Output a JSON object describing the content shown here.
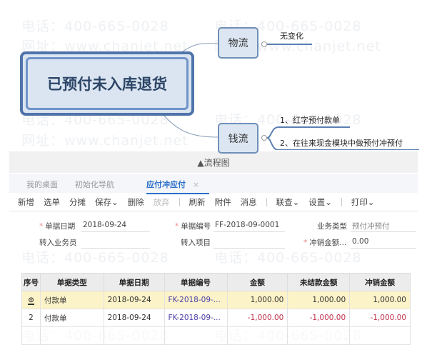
{
  "watermark": {
    "phone": "电话：400-665-0028",
    "site": "网址：www.chanjet.net"
  },
  "mindmap": {
    "central": "已预付未入库退货",
    "branches": [
      {
        "label": "物流",
        "leaves": [
          "无变化"
        ]
      },
      {
        "label": "钱流",
        "leaves": [
          "1、红字预付款单",
          "2、在往来现金模块中做预付冲预付"
        ]
      }
    ]
  },
  "caption": "▲流程图",
  "tabs": [
    {
      "label": "我的桌面"
    },
    {
      "label": "初始化导航"
    },
    {
      "label": "应付冲应付",
      "active": true,
      "close": "×"
    }
  ],
  "toolbar": [
    "新增",
    "选单",
    "分摊",
    "保存⌄",
    "删除",
    "放弃",
    "刷新",
    "附件",
    "消息",
    "联查⌄",
    "设置⌄",
    "打印⌄"
  ],
  "form": {
    "date_label": "单据日期",
    "date_value": "2018-09-24",
    "no_label": "单据编号",
    "no_value": "FF-2018-09-0001",
    "type_label": "业务类型",
    "type_value": "预付冲预付",
    "salesman_label": "转入业务员",
    "project_label": "转入项目",
    "amount_label": "冲销金额...",
    "amount_value": "0.00"
  },
  "table": {
    "headers": [
      "序号",
      "单据类型",
      "单据日期",
      "单据编号",
      "金额",
      "未结款金额",
      "冲销金额"
    ],
    "rows": [
      [
        "1",
        "付款单",
        "2018-09-24",
        "FK-2018-09-...",
        "1,000.00",
        "1,000.00",
        "1,000.00"
      ],
      [
        "2",
        "付款单",
        "2018-09-24",
        "FK-2018-09-...",
        "-1,000.00",
        "-1,000.00",
        "-1,000.00"
      ]
    ]
  },
  "colors": {
    "accent": "#2a6fc9",
    "negative": "#c0304a",
    "selected_row": "#fdf3c8"
  }
}
